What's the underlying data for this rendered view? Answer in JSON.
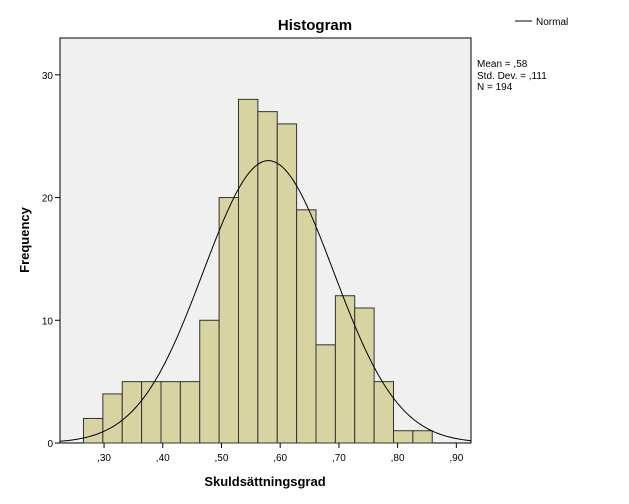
{
  "chart_data": {
    "type": "bar",
    "title": "Histogram",
    "xlabel": "Skuldsättningsgrad",
    "ylabel": "Frequency",
    "bin_width": 0.033,
    "bins": [
      {
        "x0": 0.265,
        "x1": 0.298,
        "count": 2
      },
      {
        "x0": 0.298,
        "x1": 0.331,
        "count": 4
      },
      {
        "x0": 0.331,
        "x1": 0.364,
        "count": 5
      },
      {
        "x0": 0.364,
        "x1": 0.397,
        "count": 5
      },
      {
        "x0": 0.397,
        "x1": 0.43,
        "count": 5
      },
      {
        "x0": 0.43,
        "x1": 0.463,
        "count": 5
      },
      {
        "x0": 0.463,
        "x1": 0.496,
        "count": 10
      },
      {
        "x0": 0.496,
        "x1": 0.529,
        "count": 20
      },
      {
        "x0": 0.529,
        "x1": 0.562,
        "count": 28
      },
      {
        "x0": 0.562,
        "x1": 0.595,
        "count": 27
      },
      {
        "x0": 0.595,
        "x1": 0.628,
        "count": 26
      },
      {
        "x0": 0.628,
        "x1": 0.661,
        "count": 19
      },
      {
        "x0": 0.661,
        "x1": 0.694,
        "count": 8
      },
      {
        "x0": 0.694,
        "x1": 0.727,
        "count": 12
      },
      {
        "x0": 0.727,
        "x1": 0.76,
        "count": 11
      },
      {
        "x0": 0.76,
        "x1": 0.793,
        "count": 5
      },
      {
        "x0": 0.793,
        "x1": 0.826,
        "count": 1
      },
      {
        "x0": 0.826,
        "x1": 0.859,
        "count": 1
      }
    ],
    "xlim": [
      0.225,
      0.925
    ],
    "ylim": [
      0,
      33
    ],
    "x_ticks": [
      {
        "value": 0.3,
        "label": ",30"
      },
      {
        "value": 0.4,
        "label": ",40"
      },
      {
        "value": 0.5,
        "label": ",50"
      },
      {
        "value": 0.6,
        "label": ",60"
      },
      {
        "value": 0.7,
        "label": ",70"
      },
      {
        "value": 0.8,
        "label": ",80"
      },
      {
        "value": 0.9,
        "label": ",90"
      }
    ],
    "y_ticks": [
      {
        "value": 0,
        "label": "0"
      },
      {
        "value": 10,
        "label": "10"
      },
      {
        "value": 20,
        "label": "20"
      },
      {
        "value": 30,
        "label": "30"
      }
    ],
    "normal_curve": {
      "mean": 0.58,
      "sd": 0.111,
      "n": 194
    },
    "legend": {
      "label": "Normal",
      "placement": "top-right"
    },
    "stats": [
      "Mean = ,58",
      "Std. Dev. = ,111",
      "N = 194"
    ],
    "grid": false,
    "colors": {
      "bar_fill": "#d8d4a2",
      "bar_stroke": "#333333",
      "plot_background": "#f0f0f0",
      "curve": "#000000"
    }
  }
}
